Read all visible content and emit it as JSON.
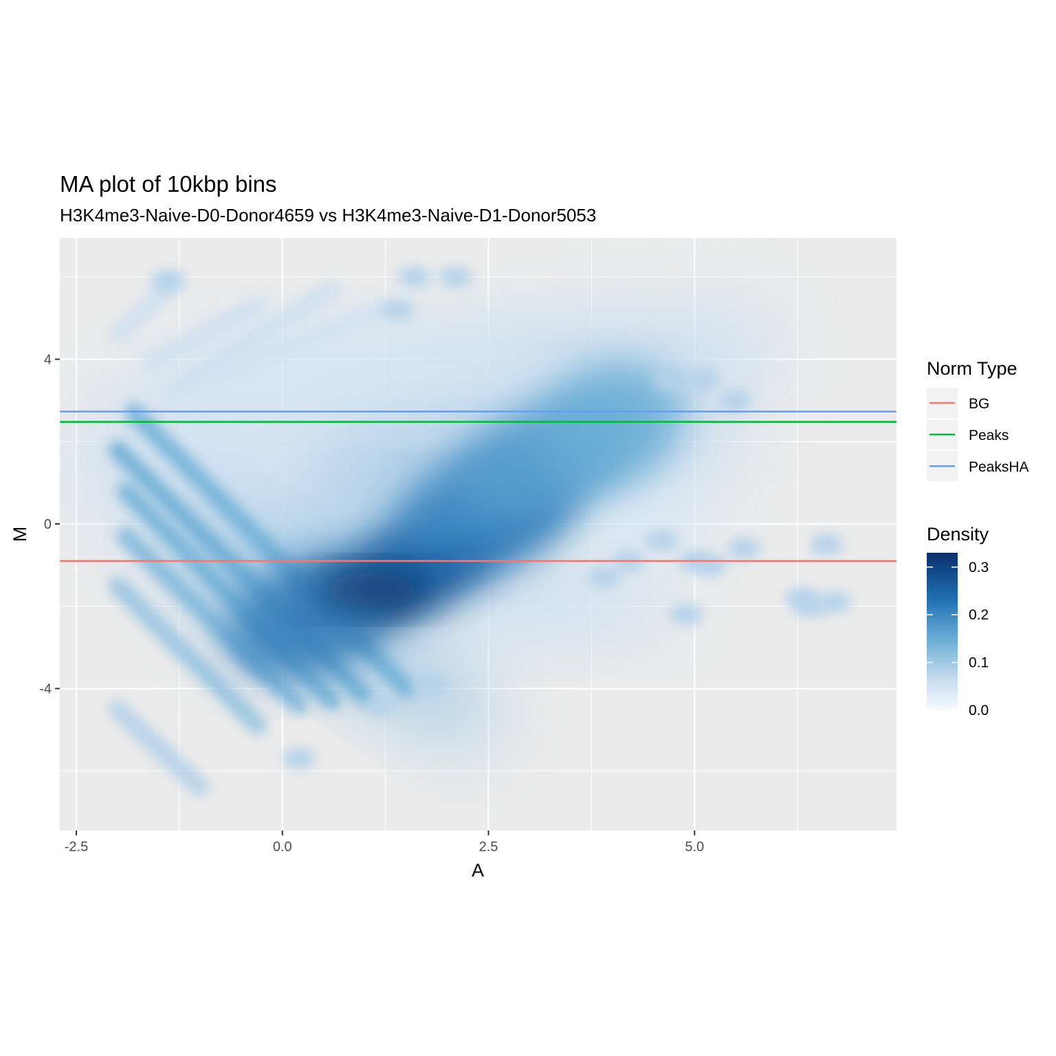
{
  "chart_data": {
    "type": "heatmap",
    "title": "MA plot of 10kbp bins",
    "subtitle": "H3K4me3-Naive-D0-Donor4659 vs H3K4me3-Naive-D1-Donor5053",
    "xlabel": "A",
    "ylabel": "M",
    "xlim": [
      -2.7,
      7.45
    ],
    "ylim": [
      -7.45,
      6.95
    ],
    "x_ticks": [
      -2.5,
      0.0,
      2.5,
      5.0
    ],
    "x_tick_labels": [
      "-2.5",
      "0.0",
      "2.5",
      "5.0"
    ],
    "y_ticks": [
      4,
      0,
      -4
    ],
    "y_tick_labels": [
      "4",
      "0",
      "-4"
    ],
    "grid": true,
    "density": {
      "peak": [
        1.1,
        -1.6
      ],
      "main_clusters": [
        {
          "x": 1.1,
          "y": -1.6,
          "weight": 1.0
        },
        {
          "x": 2.2,
          "y": -0.4,
          "weight": 0.7
        },
        {
          "x": 2.6,
          "y": 0.8,
          "weight": 0.5
        },
        {
          "x": 3.2,
          "y": 1.6,
          "weight": 0.35
        },
        {
          "x": 0.3,
          "y": -2.3,
          "weight": 0.5
        },
        {
          "x": 4.0,
          "y": 2.4,
          "weight": 0.25
        }
      ]
    },
    "hlines": [
      {
        "name": "BG",
        "y": -0.9,
        "color": "#F8766D"
      },
      {
        "name": "Peaks",
        "y": 2.48,
        "color": "#00BA38"
      },
      {
        "name": "PeaksHA",
        "y": 2.73,
        "color": "#619CFF"
      }
    ],
    "legend": {
      "norm_type_title": "Norm Type",
      "norm_type_items": [
        {
          "label": "BG",
          "color": "#F8766D"
        },
        {
          "label": "Peaks",
          "color": "#00BA38"
        },
        {
          "label": "PeaksHA",
          "color": "#619CFF"
        }
      ],
      "density_title": "Density",
      "density_ticks": [
        0.3,
        0.2,
        0.1,
        0.0
      ],
      "density_tick_labels": [
        "0.3",
        "0.2",
        "0.1",
        "0.0"
      ],
      "density_max": 0.33,
      "density_colors": [
        "#f7fbff",
        "#c6dbef",
        "#6baed6",
        "#2171b5",
        "#08306b"
      ],
      "placement": "right"
    }
  }
}
